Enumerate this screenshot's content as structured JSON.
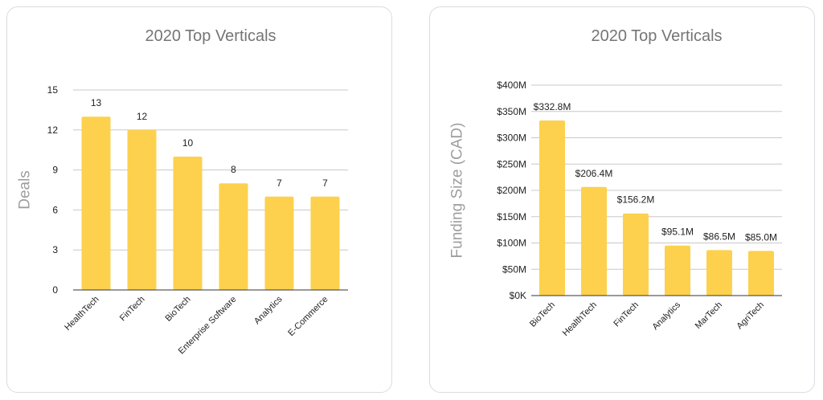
{
  "chart_data": [
    {
      "type": "bar",
      "title": "2020 Top Verticals",
      "xlabel": "",
      "ylabel": "Deals",
      "categories": [
        "HealthTech",
        "FinTech",
        "BioTech",
        "Enterprise Software",
        "Analytics",
        "E-Commerce"
      ],
      "values": [
        13,
        12,
        10,
        8,
        7,
        7
      ],
      "value_labels": [
        "13",
        "12",
        "10",
        "8",
        "7",
        "7"
      ],
      "ylim": [
        0,
        15
      ],
      "yticks": [
        0,
        3,
        6,
        9,
        12,
        15
      ],
      "ytick_labels": [
        "0",
        "3",
        "6",
        "9",
        "12",
        "15"
      ],
      "grid": true,
      "bar_color": "#FDD14D"
    },
    {
      "type": "bar",
      "title": "2020 Top Verticals",
      "xlabel": "",
      "ylabel": "Funding Size (CAD)",
      "categories": [
        "BioTech",
        "HealthTech",
        "FinTech",
        "Analytics",
        "MarTech",
        "AgriTech"
      ],
      "values": [
        332.8,
        206.4,
        156.2,
        95.1,
        86.5,
        85.0
      ],
      "value_labels": [
        "$332.8M",
        "$206.4M",
        "$156.2M",
        "$95.1M",
        "$86.5M",
        "$85.0M"
      ],
      "ylim": [
        0,
        400
      ],
      "yticks": [
        0,
        50,
        100,
        150,
        200,
        250,
        300,
        350,
        400
      ],
      "ytick_labels": [
        "$0K",
        "$50M",
        "$100M",
        "$150M",
        "$200M",
        "$250M",
        "$300M",
        "$350M",
        "$400M"
      ],
      "grid": true,
      "bar_color": "#FDD14D"
    }
  ]
}
